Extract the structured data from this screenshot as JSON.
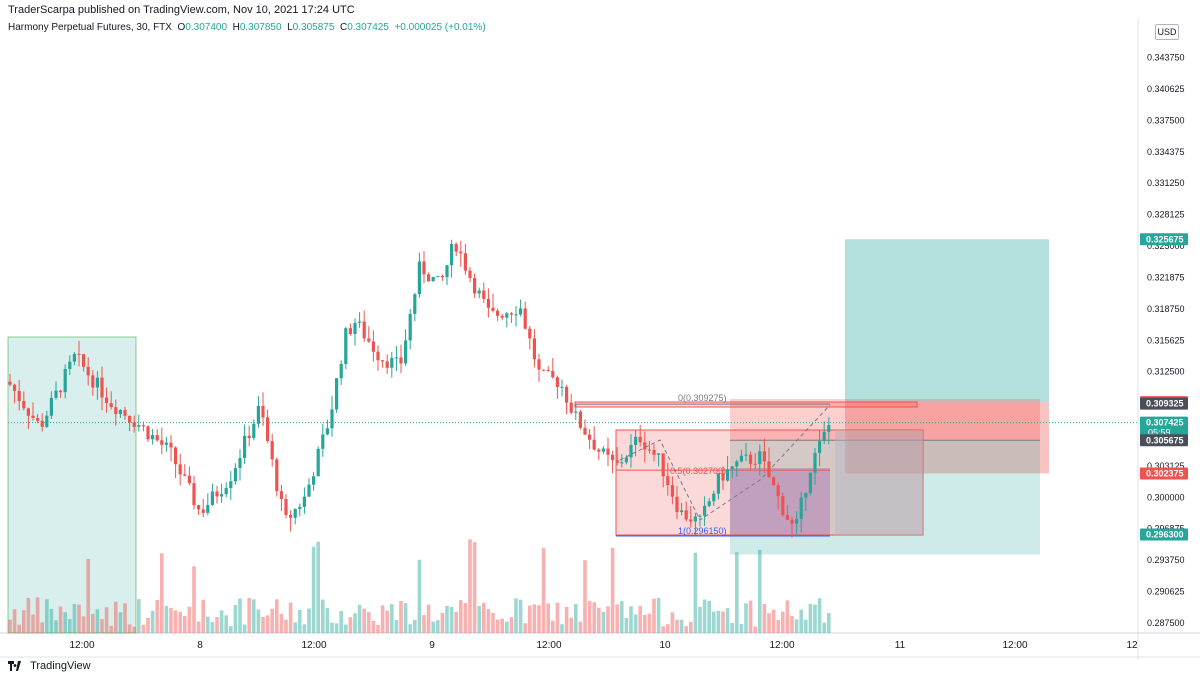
{
  "header": {
    "published": "TraderScarpa published on TradingView.com, Nov 10, 2021 17:24 UTC",
    "symbol": "Harmony Perpetual Futures, 30, FTX",
    "o_label": "O",
    "o": "0.307400",
    "h_label": "H",
    "h": "0.307850",
    "l_label": "L",
    "l": "0.305875",
    "c_label": "C",
    "c": "0.307425",
    "change": "+0.000025 (+0.01%)"
  },
  "currency": "USD",
  "footer": {
    "brand": "TradingView"
  },
  "price_axis": {
    "ticks": [
      "0.343750",
      "0.340625",
      "0.337500",
      "0.334375",
      "0.331250",
      "0.328125",
      "0.325000",
      "0.321875",
      "0.318750",
      "0.315625",
      "0.312500",
      "0.309375",
      "0.306250",
      "0.303125",
      "0.300000",
      "0.296875",
      "0.293750",
      "0.290625",
      "0.287500"
    ],
    "badges": [
      {
        "value": "0.325675",
        "color": "#26a69a"
      },
      {
        "value": "0.309475",
        "color": "#ef5350"
      },
      {
        "value": "0.309325",
        "color": "#4a4e59"
      },
      {
        "value": "0.307425",
        "sub": "05:59",
        "color": "#26a69a"
      },
      {
        "value": "0.305675",
        "color": "#4a4e59"
      },
      {
        "value": "0.302375",
        "color": "#ef5350"
      },
      {
        "value": "0.296300",
        "color": "#26a69a"
      }
    ]
  },
  "time_axis": [
    "12:00",
    "8",
    "12:00",
    "9",
    "12:00",
    "10",
    "12:00",
    "11",
    "12:00",
    "12"
  ],
  "fib_labels": [
    "0(0.309275)",
    "0.5(0.302700)",
    "1(0.296150)"
  ],
  "colors": {
    "up": "#26a69a",
    "down": "#ef5350"
  },
  "chart_data": {
    "type": "candlestick",
    "symbol": "Harmony Perpetual Futures",
    "timeframe": "30",
    "ylim": [
      0.2865,
      0.3455
    ],
    "x_ticks": [
      "12:00",
      "8",
      "12:00",
      "9",
      "12:00",
      "10",
      "12:00",
      "11",
      "12:00",
      "12"
    ],
    "last": {
      "open": 0.3074,
      "high": 0.30785,
      "low": 0.305875,
      "close": 0.307425
    },
    "levels": {
      "take_profit": 0.325675,
      "entry": 0.309475,
      "stop": 0.302375,
      "alt_entry": 0.309325,
      "alt_stop": 0.305675,
      "alt_target": 0.2963
    },
    "fib": {
      "0": 0.309275,
      "0.5": 0.3027,
      "1": 0.29615
    }
  }
}
